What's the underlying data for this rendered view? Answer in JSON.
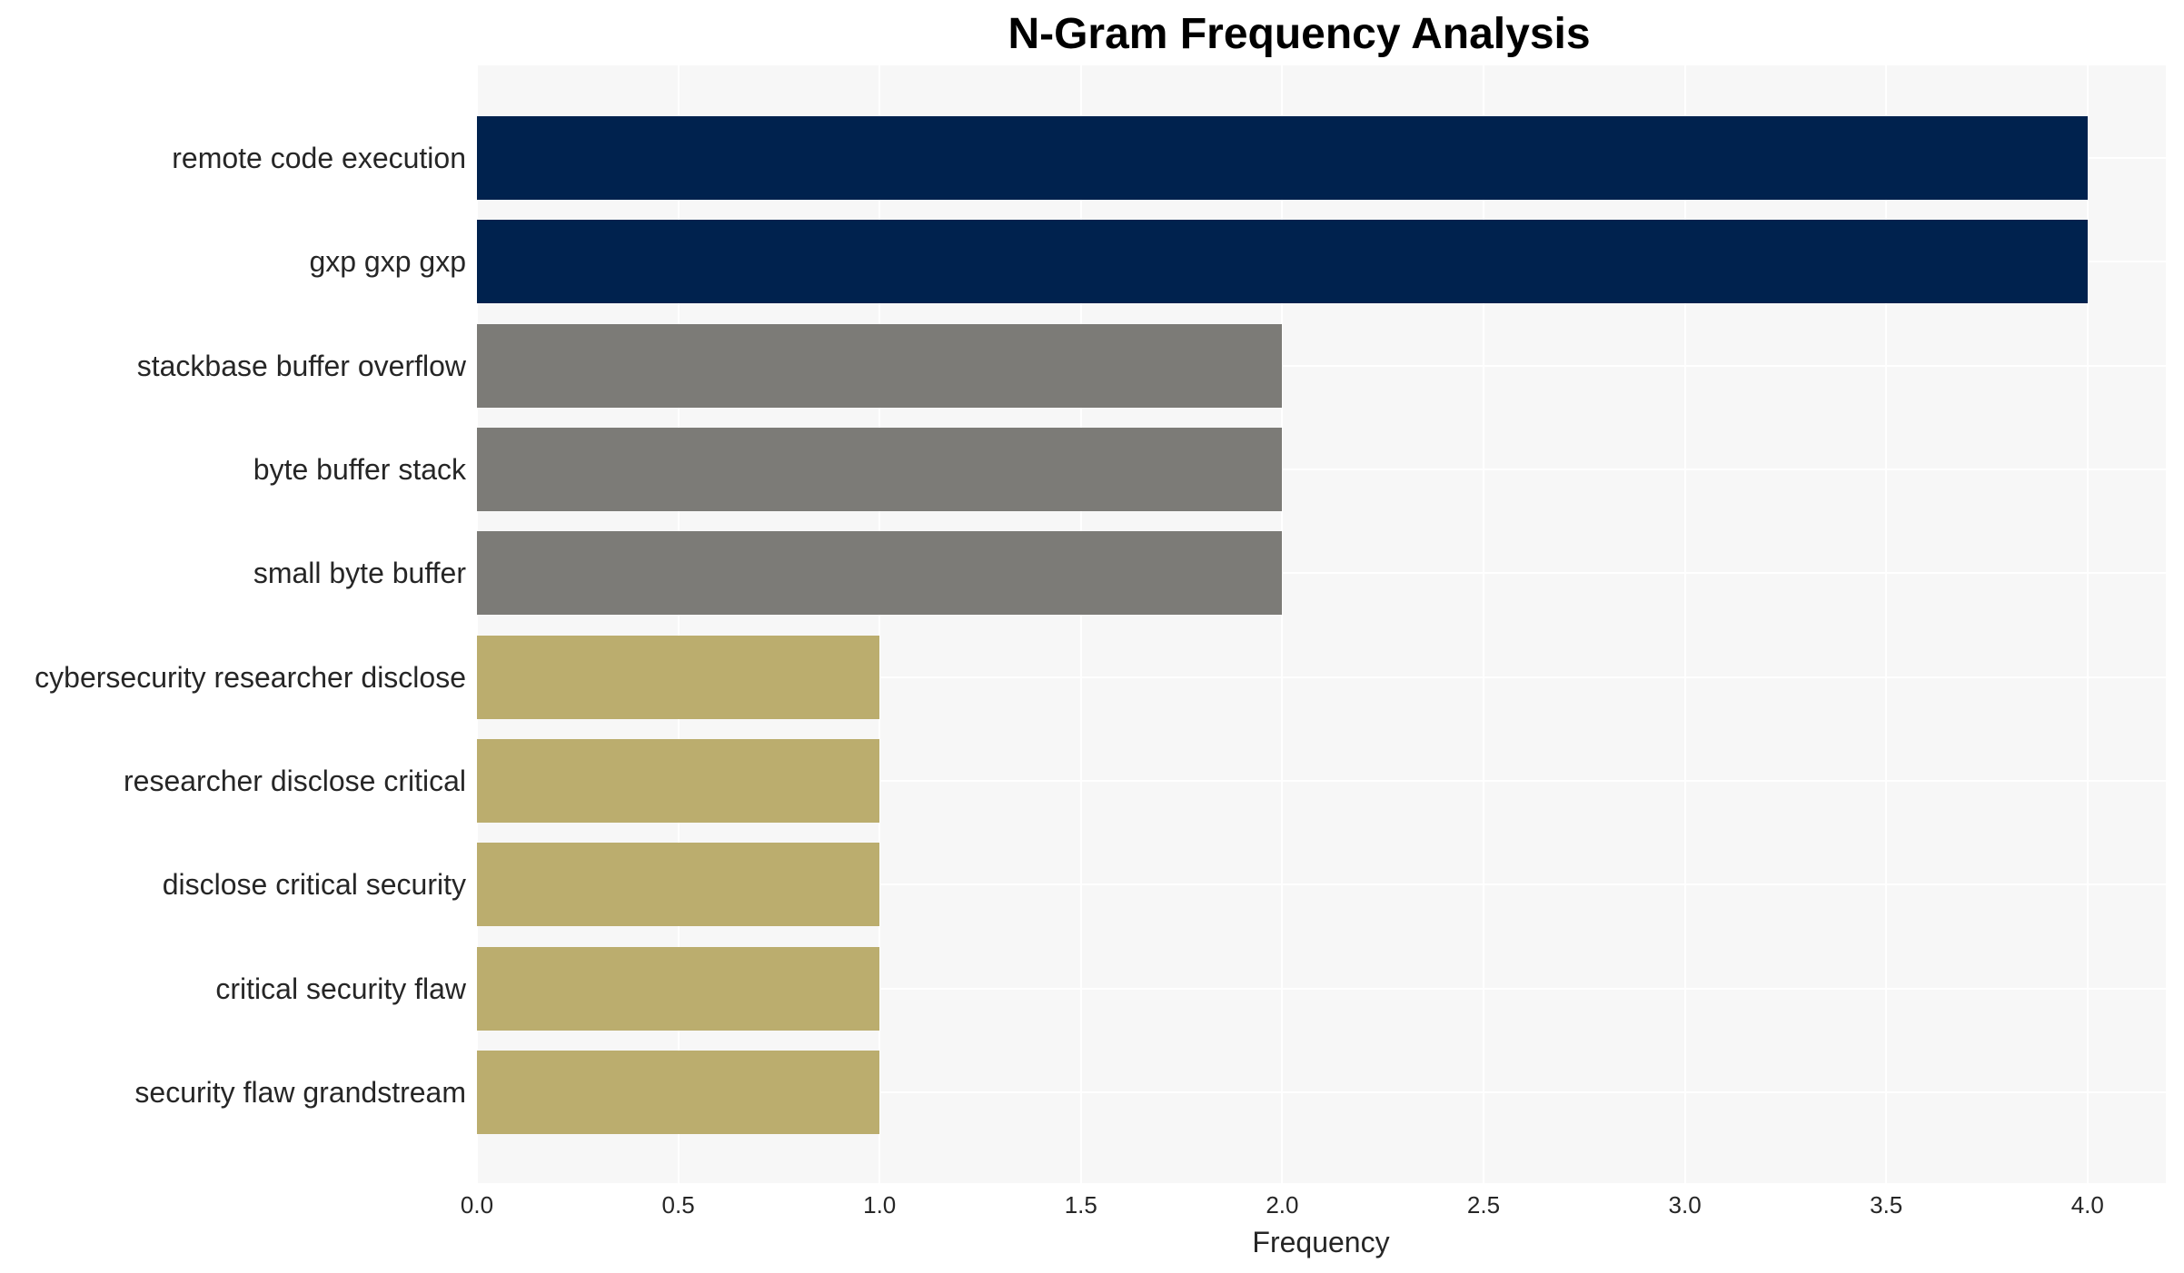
{
  "chart_data": {
    "type": "bar",
    "orientation": "horizontal",
    "title": "N-Gram Frequency Analysis",
    "xlabel": "Frequency",
    "ylabel": "",
    "xlim": [
      0,
      4.2
    ],
    "x_ticks": [
      "0.0",
      "0.5",
      "1.0",
      "1.5",
      "2.0",
      "2.5",
      "3.0",
      "3.5",
      "4.0"
    ],
    "grid": true,
    "legend": null,
    "categories": [
      "remote code execution",
      "gxp gxp gxp",
      "stackbase buffer overflow",
      "byte buffer stack",
      "small byte buffer",
      "cybersecurity researcher disclose",
      "researcher disclose critical",
      "disclose critical security",
      "critical security flaw",
      "security flaw grandstream"
    ],
    "values": [
      4,
      4,
      2,
      2,
      2,
      1,
      1,
      1,
      1,
      1
    ],
    "bar_colors": [
      "#00224e",
      "#00224e",
      "#7c7b77",
      "#7c7b77",
      "#7c7b77",
      "#bbad6e",
      "#bbad6e",
      "#bbad6e",
      "#bbad6e",
      "#bbad6e"
    ]
  },
  "colors": {
    "panel_background": "#f7f7f7",
    "gridline": "#ffffff",
    "high": "#00224e",
    "mid": "#7c7b77",
    "low": "#bbad6e"
  }
}
